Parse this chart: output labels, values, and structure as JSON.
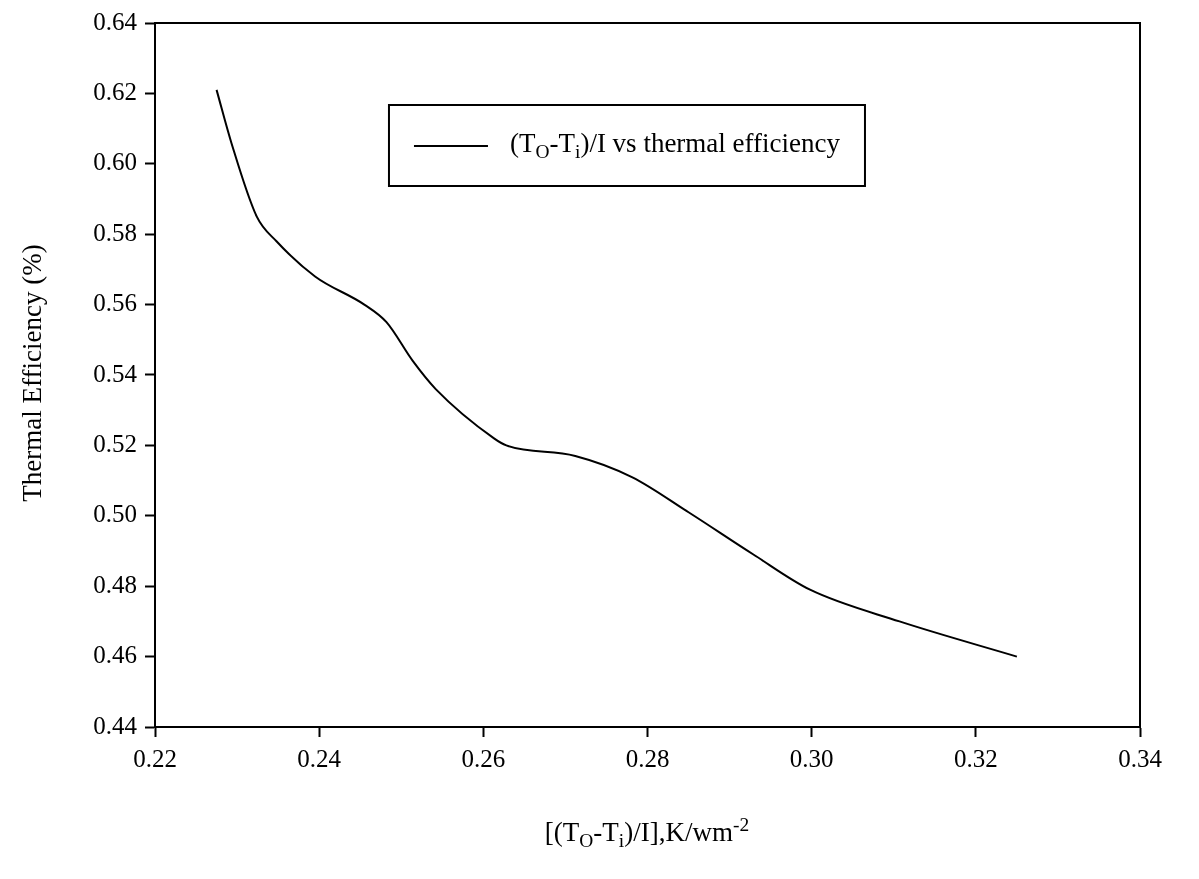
{
  "chart_data": {
    "type": "line",
    "xlabel": "[(T$_{O}$-T$_{i}$)/I],K/wm$^{-2}$",
    "ylabel": "Thermal Efficiency (%)",
    "series": [
      {
        "name": "(T$_{O}$-T$_{i}$)/I vs thermal efficiency",
        "color": "#000000",
        "x": [
          0.2275,
          0.2293,
          0.2324,
          0.2348,
          0.2395,
          0.2455,
          0.2482,
          0.2514,
          0.2542,
          0.2613,
          0.2628,
          0.2712,
          0.2781,
          0.285,
          0.2929,
          0.2998,
          0.3107,
          0.325
        ],
        "values": [
          0.621,
          0.606,
          0.585,
          0.578,
          0.568,
          0.56,
          0.555,
          0.544,
          0.536,
          0.522,
          0.52,
          0.517,
          0.511,
          0.501,
          0.489,
          0.479,
          0.47,
          0.46
        ]
      }
    ],
    "xlim": [
      0.22,
      0.34
    ],
    "xticks": [
      {
        "value": 0.22,
        "label": "0.22"
      },
      {
        "value": 0.24,
        "label": "0.24"
      },
      {
        "value": 0.26,
        "label": "0.26"
      },
      {
        "value": 0.28,
        "label": "0.28"
      },
      {
        "value": 0.3,
        "label": "0.30"
      },
      {
        "value": 0.32,
        "label": "0.32"
      },
      {
        "value": 0.34,
        "label": "0.34"
      }
    ],
    "ylim": [
      0.44,
      0.64
    ],
    "yticks": [
      {
        "value": 0.44,
        "label": "0.44"
      },
      {
        "value": 0.46,
        "label": "0.46"
      },
      {
        "value": 0.48,
        "label": "0.48"
      },
      {
        "value": 0.5,
        "label": "0.50"
      },
      {
        "value": 0.52,
        "label": "0.52"
      },
      {
        "value": 0.54,
        "label": "0.54"
      },
      {
        "value": 0.56,
        "label": "0.56"
      },
      {
        "value": 0.58,
        "label": "0.58"
      },
      {
        "value": 0.6,
        "label": "0.60"
      },
      {
        "value": 0.62,
        "label": "0.62"
      },
      {
        "value": 0.64,
        "label": "0.64"
      }
    ],
    "grid": false,
    "legend": "top",
    "marker": "none",
    "line_style": "solid"
  }
}
